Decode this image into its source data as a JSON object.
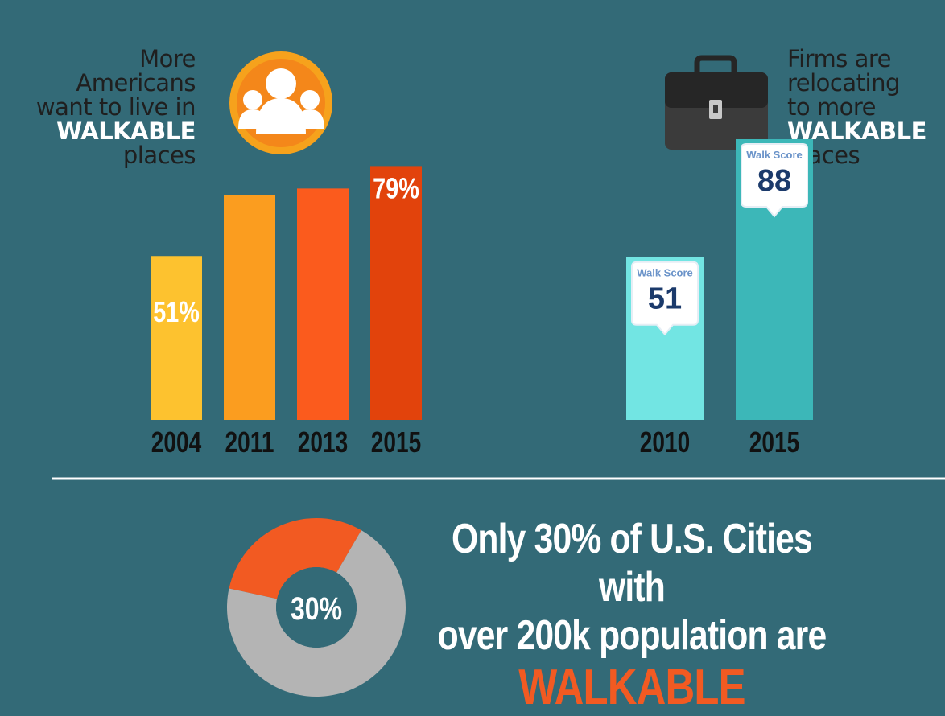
{
  "left_caption": {
    "lines": [
      "More",
      "Americans",
      "want to live in"
    ],
    "highlight": "WALKABLE",
    "last": "places"
  },
  "right_caption": {
    "lines": [
      "Firms are",
      "relocating",
      "to more"
    ],
    "highlight": "WALKABLE",
    "last": "places"
  },
  "headline": {
    "line1": "Only 30% of U.S. Cities with",
    "line2": "over 200k population are",
    "accent": "WALKABLE"
  },
  "icons": {
    "left": "people-group-icon",
    "right": "briefcase-icon"
  },
  "colors": {
    "background": "#336a77",
    "orange": "#f25a22",
    "teal_light": "#72e5e3",
    "teal_dark": "#3cb7b8",
    "donut_gray": "#b4b4b4"
  },
  "chart_data": [
    {
      "type": "bar",
      "categories": [
        "2004",
        "2011",
        "2013",
        "2015"
      ],
      "values": [
        51,
        70,
        72,
        79
      ],
      "data_labels": [
        "51%",
        "",
        "",
        "79%"
      ],
      "colors": [
        "#fdc22f",
        "#fb9d1f",
        "#fb5b1d",
        "#e2430c"
      ],
      "ylim": [
        0,
        100
      ]
    },
    {
      "type": "bar",
      "categories": [
        "2010",
        "2015"
      ],
      "values": [
        51,
        88
      ],
      "callout_label": "Walk Score",
      "data_labels": [
        "51",
        "88"
      ],
      "colors": [
        "#72e5e3",
        "#3cb7b8"
      ],
      "ylim": [
        0,
        100
      ]
    },
    {
      "type": "pie",
      "labels": [
        "walkable",
        "other"
      ],
      "values": [
        30,
        70
      ],
      "center_label": "30%",
      "colors": [
        "#f25a22",
        "#b4b4b4"
      ]
    }
  ]
}
